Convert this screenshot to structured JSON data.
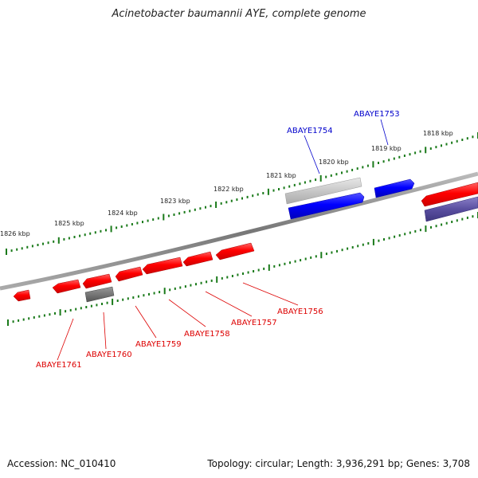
{
  "title": "Acinetobacter baumannii AYE, complete genome",
  "footer": {
    "accession": "Accession: NC_010410",
    "topology": "Topology: circular; Length: 3,936,291 bp; Genes: 3,708"
  },
  "colors": {
    "forward_gene": "#ff0000",
    "pseudo_gene": "#777777",
    "highlight_gene": "#0000ff",
    "other_gene": "#5a4fa0",
    "tick": "#1a7a1a",
    "backbone": "#888888",
    "label_red": "#dd0000",
    "label_blue": "#0000cc"
  },
  "kbp_labels": [
    "1826 kbp",
    "1825 kbp",
    "1824 kbp",
    "1823 kbp",
    "1822 kbp",
    "1821 kbp",
    "1820 kbp",
    "1819 kbp",
    "1818 kbp"
  ],
  "gene_labels": {
    "top": [
      "ABAYE1754",
      "ABAYE1753"
    ],
    "bottom": [
      "ABAYE1761",
      "ABAYE1760",
      "ABAYE1759",
      "ABAYE1758",
      "ABAYE1757",
      "ABAYE1756"
    ]
  }
}
